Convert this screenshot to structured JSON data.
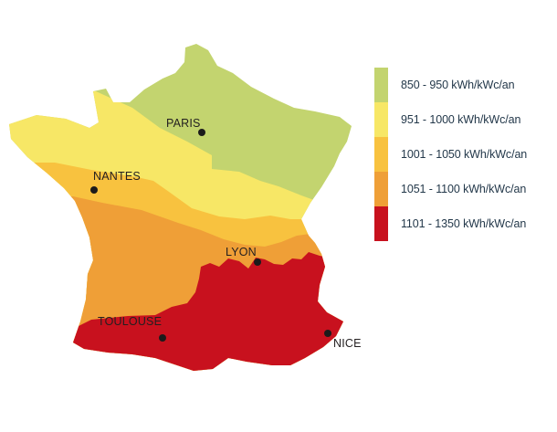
{
  "map": {
    "regions": [
      {
        "id": "zone-1",
        "color": "#c3d46f"
      },
      {
        "id": "zone-2",
        "color": "#f7e766"
      },
      {
        "id": "zone-3",
        "color": "#f8c23f"
      },
      {
        "id": "zone-4",
        "color": "#ef9f37"
      },
      {
        "id": "zone-5",
        "color": "#c8111e"
      }
    ],
    "cities": [
      {
        "id": "paris",
        "label": "PARIS"
      },
      {
        "id": "nantes",
        "label": "NANTES"
      },
      {
        "id": "lyon",
        "label": "LYON"
      },
      {
        "id": "toulouse",
        "label": "TOULOUSE"
      },
      {
        "id": "nice",
        "label": "NICE"
      }
    ]
  },
  "legend": {
    "items": [
      {
        "label": "850 - 950 kWh/kWc/an",
        "color": "#c3d46f"
      },
      {
        "label": "951 - 1000 kWh/kWc/an",
        "color": "#f7e766"
      },
      {
        "label": "1001 - 1050 kWh/kWc/an",
        "color": "#f8c23f"
      },
      {
        "label": "1051 - 1100 kWh/kWc/an",
        "color": "#ef9f37"
      },
      {
        "label": "1101 - 1350 kWh/kWc/an",
        "color": "#c8111e"
      }
    ]
  }
}
